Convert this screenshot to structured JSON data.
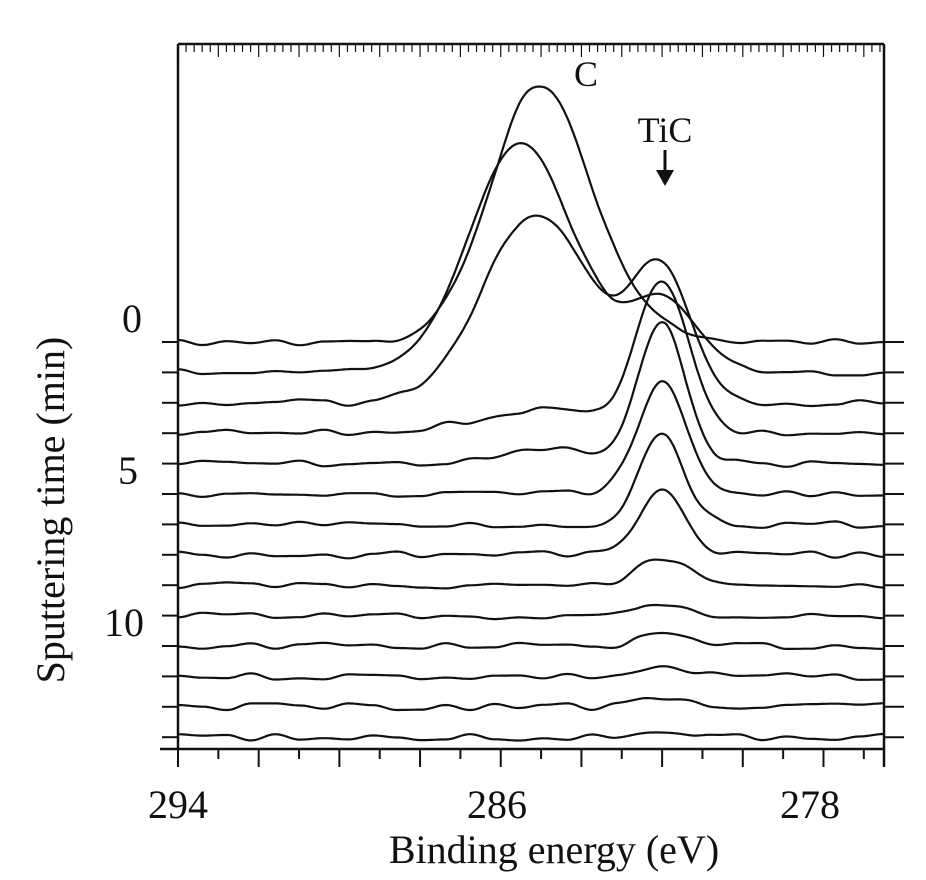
{
  "chart_data": {
    "type": "line",
    "title": "",
    "xlabel": "Binding energy (eV)",
    "ylabel": "Sputtering time (min)",
    "x_reversed": true,
    "xlim": [
      294,
      276.5
    ],
    "x_ticks": [
      "294",
      "286",
      "278"
    ],
    "y_ticks": [
      "0",
      "5",
      "10"
    ],
    "sputter_step_min": 1,
    "annotations": {
      "c_peak": "C",
      "tic_peak": "TiC"
    },
    "series": [
      {
        "sputter_time_min": 0,
        "peaks": [
          {
            "be": 285.0,
            "height": 8.6,
            "width": 1.25
          },
          {
            "be": 282.0,
            "height": 0.3,
            "width": 0.9
          }
        ]
      },
      {
        "sputter_time_min": 1,
        "peaks": [
          {
            "be": 285.5,
            "height": 7.6,
            "width": 1.3
          },
          {
            "be": 282.0,
            "height": 2.4,
            "width": 0.85
          }
        ]
      },
      {
        "sputter_time_min": 2,
        "peaks": [
          {
            "be": 285.1,
            "height": 6.3,
            "width": 1.35
          },
          {
            "be": 282.0,
            "height": 4.3,
            "width": 0.75
          }
        ]
      },
      {
        "sputter_time_min": 3,
        "peaks": [
          {
            "be": 285.0,
            "height": 0.8,
            "width": 1.6
          },
          {
            "be": 282.0,
            "height": 5.0,
            "width": 0.65
          }
        ]
      },
      {
        "sputter_time_min": 4,
        "peaks": [
          {
            "be": 284.8,
            "height": 0.5,
            "width": 1.0
          },
          {
            "be": 282.0,
            "height": 4.6,
            "width": 0.6
          }
        ]
      },
      {
        "sputter_time_min": 5,
        "peaks": [
          {
            "be": 282.0,
            "height": 3.7,
            "width": 0.6
          }
        ]
      },
      {
        "sputter_time_min": 6,
        "peaks": [
          {
            "be": 282.0,
            "height": 3.0,
            "width": 0.55
          }
        ]
      },
      {
        "sputter_time_min": 7,
        "peaks": [
          {
            "be": 282.0,
            "height": 2.2,
            "width": 0.55
          }
        ]
      },
      {
        "sputter_time_min": 8,
        "peaks": [
          {
            "be": 282.0,
            "height": 0.9,
            "width": 0.6
          }
        ]
      },
      {
        "sputter_time_min": 9,
        "peaks": [
          {
            "be": 282.0,
            "height": 0.45,
            "width": 0.6
          }
        ]
      },
      {
        "sputter_time_min": 10,
        "peaks": [
          {
            "be": 282.0,
            "height": 0.35,
            "width": 0.6
          }
        ]
      },
      {
        "sputter_time_min": 11,
        "peaks": [
          {
            "be": 282.0,
            "height": 0.3,
            "width": 0.6
          }
        ]
      },
      {
        "sputter_time_min": 12,
        "peaks": [
          {
            "be": 282.0,
            "height": 0.25,
            "width": 0.6
          }
        ]
      },
      {
        "sputter_time_min": 13,
        "peaks": [
          {
            "be": 282.0,
            "height": 0.2,
            "width": 0.6
          }
        ]
      }
    ],
    "grid": false,
    "legend": "none"
  }
}
